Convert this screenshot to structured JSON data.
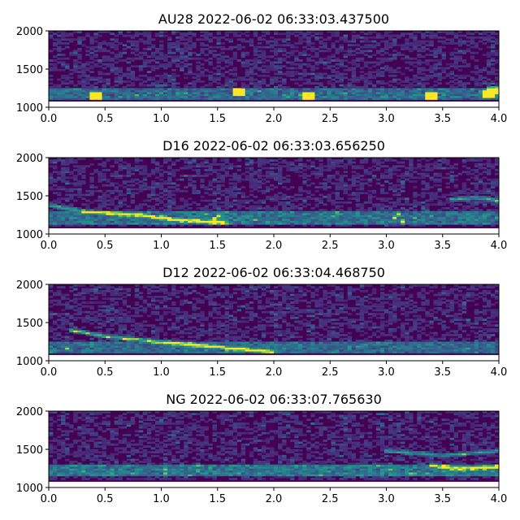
{
  "chart_data": [
    {
      "type": "heatmap",
      "title": "AU28 2022-06-02 06:33:03.437500",
      "xlim": [
        0,
        4
      ],
      "ylim": [
        1000,
        2000
      ],
      "xticks": [
        "0.0",
        "0.5",
        "1.0",
        "1.5",
        "2.0",
        "2.5",
        "3.0",
        "3.5",
        "4.0"
      ],
      "yticks": [
        "1000",
        "1500",
        "2000"
      ],
      "colormap": "viridis",
      "description_of_content": "broadband noise, bright band near 1100-1250",
      "features": [
        {
          "kind": "band",
          "y": [
            1100,
            1250
          ],
          "intensity": 0.45
        },
        {
          "kind": "spots",
          "x": [
            0.42,
            1.7,
            2.3,
            3.4,
            3.9,
            3.95
          ],
          "y": [
            1150,
            1200,
            1150,
            1150,
            1180,
            1230
          ]
        }
      ]
    },
    {
      "type": "heatmap",
      "title": "D16 2022-06-02 06:33:03.656250",
      "xlim": [
        0,
        4
      ],
      "ylim": [
        1000,
        2000
      ],
      "xticks": [
        "0.0",
        "0.5",
        "1.0",
        "1.5",
        "2.0",
        "2.5",
        "3.0",
        "3.5",
        "4.0"
      ],
      "yticks": [
        "1000",
        "1500",
        "2000"
      ],
      "colormap": "viridis",
      "features": [
        {
          "kind": "band",
          "y": [
            1120,
            1300
          ],
          "intensity": 0.5
        },
        {
          "kind": "curve",
          "points": [
            [
              0.0,
              1380
            ],
            [
              0.3,
              1300
            ],
            [
              0.8,
              1250
            ],
            [
              1.2,
              1180
            ],
            [
              1.6,
              1150
            ]
          ],
          "intensity": 0.85
        },
        {
          "kind": "curve",
          "points": [
            [
              1.45,
              1150
            ],
            [
              1.5,
              1260
            ],
            [
              1.55,
              1150
            ]
          ],
          "intensity": 0.95
        },
        {
          "kind": "curve",
          "points": [
            [
              3.05,
              1150
            ],
            [
              3.1,
              1280
            ],
            [
              3.15,
              1150
            ]
          ],
          "intensity": 0.95
        },
        {
          "kind": "curve",
          "points": [
            [
              3.55,
              1450
            ],
            [
              3.8,
              1480
            ],
            [
              4.0,
              1440
            ]
          ],
          "intensity": 0.8
        }
      ]
    },
    {
      "type": "heatmap",
      "title": "D12 2022-06-02 06:33:04.468750",
      "xlim": [
        0,
        4
      ],
      "ylim": [
        1000,
        2000
      ],
      "xticks": [
        "0.0",
        "0.5",
        "1.0",
        "1.5",
        "2.0",
        "2.5",
        "3.0",
        "3.5",
        "4.0"
      ],
      "yticks": [
        "1000",
        "1500",
        "2000"
      ],
      "colormap": "viridis",
      "features": [
        {
          "kind": "band",
          "y": [
            1100,
            1250
          ],
          "intensity": 0.45
        },
        {
          "kind": "curve",
          "points": [
            [
              0.2,
              1400
            ],
            [
              0.5,
              1320
            ],
            [
              1.0,
              1250
            ],
            [
              1.5,
              1180
            ],
            [
              2.0,
              1120
            ]
          ],
          "intensity": 0.95
        }
      ]
    },
    {
      "type": "heatmap",
      "title": "NG 2022-06-02 06:33:07.765630",
      "xlim": [
        0,
        4
      ],
      "ylim": [
        1000,
        2000
      ],
      "xticks": [
        "0.0",
        "0.5",
        "1.0",
        "1.5",
        "2.0",
        "2.5",
        "3.0",
        "3.5",
        "4.0"
      ],
      "yticks": [
        "1000",
        "1500",
        "2000"
      ],
      "colormap": "viridis",
      "features": [
        {
          "kind": "band",
          "y": [
            1150,
            1300
          ],
          "intensity": 0.55
        },
        {
          "kind": "curve",
          "points": [
            [
              3.0,
              1480
            ],
            [
              3.5,
              1420
            ],
            [
              4.0,
              1480
            ]
          ],
          "intensity": 0.7
        },
        {
          "kind": "curve",
          "points": [
            [
              3.4,
              1300
            ],
            [
              3.6,
              1250
            ],
            [
              4.0,
              1270
            ]
          ],
          "intensity": 0.85
        }
      ]
    }
  ]
}
